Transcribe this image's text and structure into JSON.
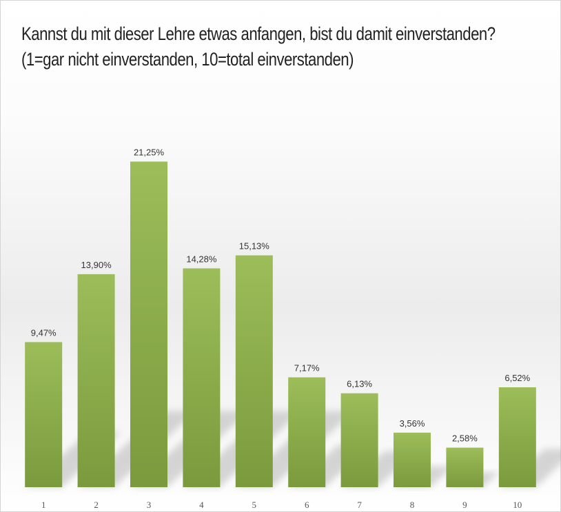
{
  "chart_data": {
    "type": "bar",
    "title": "Kannst du mit dieser Lehre etwas anfangen, bist du damit einverstanden?",
    "subtitle": "(1=gar nicht einverstanden, 10=total einverstanden)",
    "categories": [
      "1",
      "2",
      "3",
      "4",
      "5",
      "6",
      "7",
      "8",
      "9",
      "10"
    ],
    "values": [
      9.47,
      13.9,
      21.25,
      14.28,
      15.13,
      7.17,
      6.13,
      3.56,
      2.58,
      6.52
    ],
    "value_labels": [
      "9,47%",
      "13,90%",
      "21,25%",
      "14,28%",
      "15,13%",
      "7,17%",
      "6,13%",
      "3,56%",
      "2,58%",
      "6,52%"
    ],
    "ylim": [
      0,
      22.8
    ],
    "grid": false,
    "legend": "none",
    "colors": {
      "bar_top": "#9cbd59",
      "bar_bottom": "#7a9a3d",
      "shadow": "#b5b5b5"
    }
  }
}
